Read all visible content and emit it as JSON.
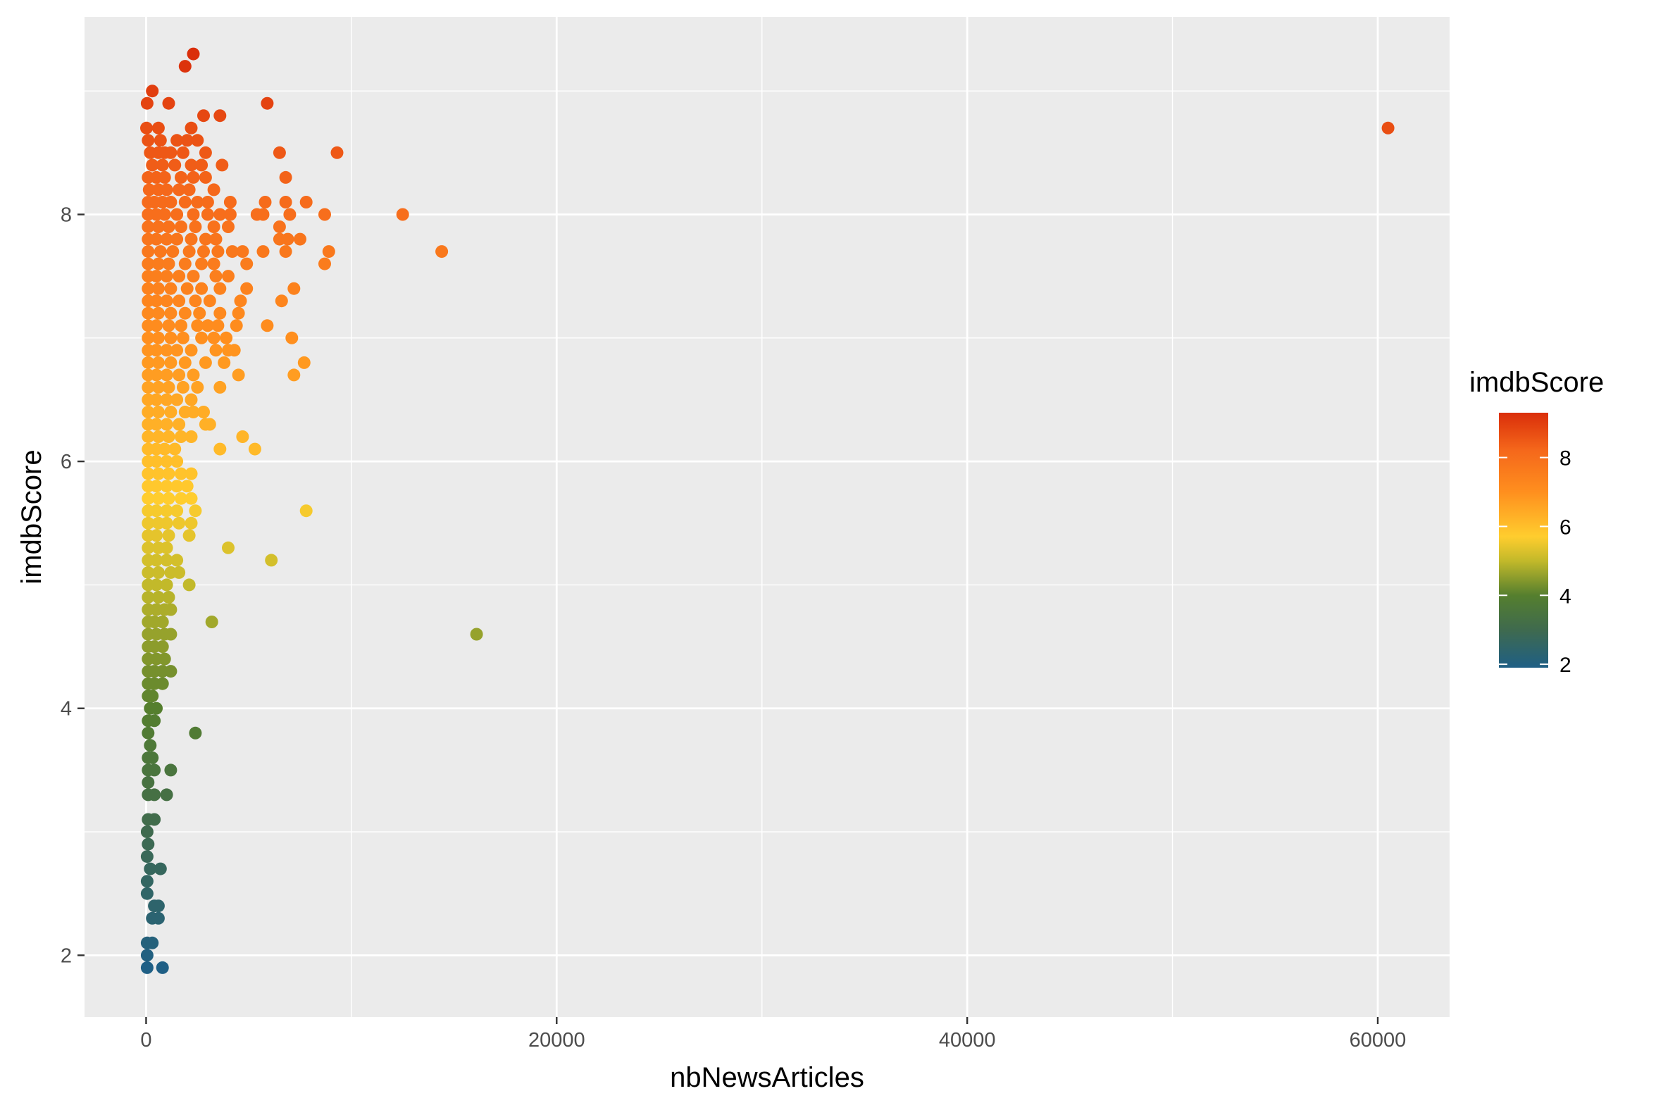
{
  "chart_data": {
    "type": "scatter",
    "title": "",
    "xlabel": "nbNewsArticles",
    "ylabel": "imdbScore",
    "xlim": [
      -3000,
      63500
    ],
    "ylim": [
      1.5,
      9.6
    ],
    "x_ticks": [
      0,
      20000,
      40000,
      60000
    ],
    "x_tick_labels": [
      "0",
      "20000",
      "40000",
      "60000"
    ],
    "y_ticks": [
      2,
      4,
      6,
      8
    ],
    "y_tick_labels": [
      "2",
      "4",
      "6",
      "8"
    ],
    "grid": true,
    "background": "#EBEBEB",
    "legend": {
      "title": "imdbScore",
      "position": "right",
      "type": "colorbar",
      "range": [
        1.9,
        9.3
      ],
      "breaks": [
        2,
        4,
        6,
        8
      ],
      "break_labels": [
        "2",
        "4",
        "6",
        "8"
      ]
    },
    "color_scale": [
      {
        "value": 1.9,
        "color": "#1F5F85"
      },
      {
        "value": 3.0,
        "color": "#3F6A4E"
      },
      {
        "value": 4.0,
        "color": "#557F2E"
      },
      {
        "value": 5.0,
        "color": "#C2B92A"
      },
      {
        "value": 5.7,
        "color": "#FFCD2E"
      },
      {
        "value": 7.0,
        "color": "#FF8F1E"
      },
      {
        "value": 8.2,
        "color": "#F5681B"
      },
      {
        "value": 9.3,
        "color": "#DA2E0A"
      }
    ],
    "points": [
      [
        2300,
        9.3
      ],
      [
        1900,
        9.2
      ],
      [
        50,
        8.9
      ],
      [
        300,
        9.0
      ],
      [
        1100,
        8.9
      ],
      [
        5900,
        8.9
      ],
      [
        3600,
        8.8
      ],
      [
        2800,
        8.8
      ],
      [
        60500,
        8.7
      ],
      [
        20,
        8.7
      ],
      [
        600,
        8.7
      ],
      [
        2200,
        8.7
      ],
      [
        200,
        8.5
      ],
      [
        600,
        8.5
      ],
      [
        900,
        8.5
      ],
      [
        1200,
        8.5
      ],
      [
        1800,
        8.5
      ],
      [
        2900,
        8.5
      ],
      [
        6500,
        8.5
      ],
      [
        9300,
        8.5
      ],
      [
        100,
        8.6
      ],
      [
        700,
        8.6
      ],
      [
        1500,
        8.6
      ],
      [
        2000,
        8.6
      ],
      [
        2500,
        8.6
      ],
      [
        300,
        8.4
      ],
      [
        800,
        8.4
      ],
      [
        1400,
        8.4
      ],
      [
        2200,
        8.4
      ],
      [
        2700,
        8.4
      ],
      [
        3700,
        8.4
      ],
      [
        100,
        8.3
      ],
      [
        500,
        8.3
      ],
      [
        900,
        8.3
      ],
      [
        1700,
        8.3
      ],
      [
        2300,
        8.3
      ],
      [
        2900,
        8.3
      ],
      [
        6800,
        8.3
      ],
      [
        150,
        8.2
      ],
      [
        600,
        8.2
      ],
      [
        1000,
        8.2
      ],
      [
        1600,
        8.2
      ],
      [
        2100,
        8.2
      ],
      [
        3300,
        8.2
      ],
      [
        100,
        8.1
      ],
      [
        400,
        8.1
      ],
      [
        800,
        8.1
      ],
      [
        1200,
        8.1
      ],
      [
        1900,
        8.1
      ],
      [
        2500,
        8.1
      ],
      [
        3000,
        8.1
      ],
      [
        4100,
        8.1
      ],
      [
        5800,
        8.1
      ],
      [
        6800,
        8.1
      ],
      [
        7800,
        8.1
      ],
      [
        100,
        8.0
      ],
      [
        500,
        8.0
      ],
      [
        900,
        8.0
      ],
      [
        1500,
        8.0
      ],
      [
        2300,
        8.0
      ],
      [
        3000,
        8.0
      ],
      [
        3600,
        8.0
      ],
      [
        4100,
        8.0
      ],
      [
        5400,
        8.0
      ],
      [
        5700,
        8.0
      ],
      [
        7000,
        8.0
      ],
      [
        8700,
        8.0
      ],
      [
        12500,
        8.0
      ],
      [
        100,
        7.9
      ],
      [
        600,
        7.9
      ],
      [
        1100,
        7.9
      ],
      [
        1700,
        7.9
      ],
      [
        2400,
        7.9
      ],
      [
        3300,
        7.9
      ],
      [
        4000,
        7.9
      ],
      [
        6500,
        7.9
      ],
      [
        100,
        7.8
      ],
      [
        500,
        7.8
      ],
      [
        1000,
        7.8
      ],
      [
        1500,
        7.8
      ],
      [
        2200,
        7.8
      ],
      [
        2900,
        7.8
      ],
      [
        3400,
        7.8
      ],
      [
        6500,
        7.8
      ],
      [
        6900,
        7.8
      ],
      [
        7500,
        7.8
      ],
      [
        100,
        7.7
      ],
      [
        700,
        7.7
      ],
      [
        1300,
        7.7
      ],
      [
        2100,
        7.7
      ],
      [
        2800,
        7.7
      ],
      [
        3500,
        7.7
      ],
      [
        4200,
        7.7
      ],
      [
        4700,
        7.7
      ],
      [
        5700,
        7.7
      ],
      [
        6800,
        7.7
      ],
      [
        8900,
        7.7
      ],
      [
        14400,
        7.7
      ],
      [
        100,
        7.6
      ],
      [
        600,
        7.6
      ],
      [
        1100,
        7.6
      ],
      [
        1900,
        7.6
      ],
      [
        2700,
        7.6
      ],
      [
        3300,
        7.6
      ],
      [
        4900,
        7.6
      ],
      [
        8700,
        7.6
      ],
      [
        100,
        7.5
      ],
      [
        500,
        7.5
      ],
      [
        1000,
        7.5
      ],
      [
        1600,
        7.5
      ],
      [
        2300,
        7.5
      ],
      [
        3400,
        7.5
      ],
      [
        4000,
        7.5
      ],
      [
        100,
        7.4
      ],
      [
        600,
        7.4
      ],
      [
        1200,
        7.4
      ],
      [
        2000,
        7.4
      ],
      [
        2700,
        7.4
      ],
      [
        3600,
        7.4
      ],
      [
        4900,
        7.4
      ],
      [
        7200,
        7.4
      ],
      [
        100,
        7.3
      ],
      [
        500,
        7.3
      ],
      [
        1000,
        7.3
      ],
      [
        1600,
        7.3
      ],
      [
        2400,
        7.3
      ],
      [
        3100,
        7.3
      ],
      [
        4600,
        7.3
      ],
      [
        6600,
        7.3
      ],
      [
        100,
        7.2
      ],
      [
        600,
        7.2
      ],
      [
        1200,
        7.2
      ],
      [
        1900,
        7.2
      ],
      [
        2600,
        7.2
      ],
      [
        3600,
        7.2
      ],
      [
        4500,
        7.2
      ],
      [
        100,
        7.1
      ],
      [
        500,
        7.1
      ],
      [
        1100,
        7.1
      ],
      [
        1700,
        7.1
      ],
      [
        2500,
        7.1
      ],
      [
        3000,
        7.1
      ],
      [
        3500,
        7.1
      ],
      [
        4400,
        7.1
      ],
      [
        5900,
        7.1
      ],
      [
        100,
        7.0
      ],
      [
        600,
        7.0
      ],
      [
        1200,
        7.0
      ],
      [
        1800,
        7.0
      ],
      [
        2700,
        7.0
      ],
      [
        3300,
        7.0
      ],
      [
        3900,
        7.0
      ],
      [
        7100,
        7.0
      ],
      [
        100,
        6.9
      ],
      [
        500,
        6.9
      ],
      [
        1000,
        6.9
      ],
      [
        1500,
        6.9
      ],
      [
        2200,
        6.9
      ],
      [
        3400,
        6.9
      ],
      [
        4000,
        6.9
      ],
      [
        4300,
        6.9
      ],
      [
        100,
        6.8
      ],
      [
        600,
        6.8
      ],
      [
        1200,
        6.8
      ],
      [
        1900,
        6.8
      ],
      [
        2900,
        6.8
      ],
      [
        3800,
        6.8
      ],
      [
        7700,
        6.8
      ],
      [
        100,
        6.7
      ],
      [
        500,
        6.7
      ],
      [
        1000,
        6.7
      ],
      [
        1600,
        6.7
      ],
      [
        2300,
        6.7
      ],
      [
        4500,
        6.7
      ],
      [
        7200,
        6.7
      ],
      [
        100,
        6.6
      ],
      [
        600,
        6.6
      ],
      [
        1100,
        6.6
      ],
      [
        1800,
        6.6
      ],
      [
        2500,
        6.6
      ],
      [
        3600,
        6.6
      ],
      [
        100,
        6.5
      ],
      [
        500,
        6.5
      ],
      [
        1000,
        6.5
      ],
      [
        1500,
        6.5
      ],
      [
        2200,
        6.5
      ],
      [
        100,
        6.4
      ],
      [
        600,
        6.4
      ],
      [
        1200,
        6.4
      ],
      [
        1900,
        6.4
      ],
      [
        2300,
        6.4
      ],
      [
        2800,
        6.4
      ],
      [
        100,
        6.3
      ],
      [
        500,
        6.3
      ],
      [
        1000,
        6.3
      ],
      [
        1600,
        6.3
      ],
      [
        2900,
        6.3
      ],
      [
        3100,
        6.3
      ],
      [
        100,
        6.2
      ],
      [
        600,
        6.2
      ],
      [
        1100,
        6.2
      ],
      [
        1700,
        6.2
      ],
      [
        2200,
        6.2
      ],
      [
        4700,
        6.2
      ],
      [
        100,
        6.1
      ],
      [
        500,
        6.1
      ],
      [
        900,
        6.1
      ],
      [
        1400,
        6.1
      ],
      [
        3600,
        6.1
      ],
      [
        5300,
        6.1
      ],
      [
        100,
        6.0
      ],
      [
        500,
        6.0
      ],
      [
        1000,
        6.0
      ],
      [
        1500,
        6.0
      ],
      [
        100,
        5.9
      ],
      [
        600,
        5.9
      ],
      [
        1100,
        5.9
      ],
      [
        1700,
        5.9
      ],
      [
        2200,
        5.9
      ],
      [
        100,
        5.8
      ],
      [
        500,
        5.8
      ],
      [
        1000,
        5.8
      ],
      [
        1500,
        5.8
      ],
      [
        2000,
        5.8
      ],
      [
        100,
        5.7
      ],
      [
        600,
        5.7
      ],
      [
        1100,
        5.7
      ],
      [
        1700,
        5.7
      ],
      [
        2200,
        5.7
      ],
      [
        100,
        5.6
      ],
      [
        500,
        5.6
      ],
      [
        1000,
        5.6
      ],
      [
        1500,
        5.6
      ],
      [
        2400,
        5.6
      ],
      [
        7800,
        5.6
      ],
      [
        100,
        5.5
      ],
      [
        600,
        5.5
      ],
      [
        1000,
        5.5
      ],
      [
        1600,
        5.5
      ],
      [
        2200,
        5.5
      ],
      [
        100,
        5.4
      ],
      [
        500,
        5.4
      ],
      [
        1100,
        5.4
      ],
      [
        2100,
        5.4
      ],
      [
        100,
        5.3
      ],
      [
        600,
        5.3
      ],
      [
        1000,
        5.3
      ],
      [
        4000,
        5.3
      ],
      [
        100,
        5.2
      ],
      [
        500,
        5.2
      ],
      [
        1000,
        5.2
      ],
      [
        1500,
        5.2
      ],
      [
        6100,
        5.2
      ],
      [
        100,
        5.1
      ],
      [
        600,
        5.1
      ],
      [
        1200,
        5.1
      ],
      [
        1600,
        5.1
      ],
      [
        100,
        5.0
      ],
      [
        500,
        5.0
      ],
      [
        1000,
        5.0
      ],
      [
        2100,
        5.0
      ],
      [
        100,
        4.9
      ],
      [
        600,
        4.9
      ],
      [
        1100,
        4.9
      ],
      [
        100,
        4.8
      ],
      [
        500,
        4.8
      ],
      [
        900,
        4.8
      ],
      [
        1200,
        4.8
      ],
      [
        100,
        4.7
      ],
      [
        400,
        4.7
      ],
      [
        800,
        4.7
      ],
      [
        3200,
        4.7
      ],
      [
        100,
        4.6
      ],
      [
        500,
        4.6
      ],
      [
        900,
        4.6
      ],
      [
        1200,
        4.6
      ],
      [
        16100,
        4.6
      ],
      [
        100,
        4.5
      ],
      [
        400,
        4.5
      ],
      [
        800,
        4.5
      ],
      [
        100,
        4.4
      ],
      [
        500,
        4.4
      ],
      [
        900,
        4.4
      ],
      [
        100,
        4.3
      ],
      [
        400,
        4.3
      ],
      [
        800,
        4.3
      ],
      [
        1200,
        4.3
      ],
      [
        100,
        4.2
      ],
      [
        400,
        4.2
      ],
      [
        800,
        4.2
      ],
      [
        100,
        4.1
      ],
      [
        300,
        4.1
      ],
      [
        200,
        4.0
      ],
      [
        500,
        4.0
      ],
      [
        100,
        3.9
      ],
      [
        400,
        3.9
      ],
      [
        100,
        3.8
      ],
      [
        2400,
        3.8
      ],
      [
        200,
        3.7
      ],
      [
        100,
        3.6
      ],
      [
        300,
        3.6
      ],
      [
        100,
        3.5
      ],
      [
        400,
        3.5
      ],
      [
        1200,
        3.5
      ],
      [
        100,
        3.4
      ],
      [
        100,
        3.3
      ],
      [
        400,
        3.3
      ],
      [
        1000,
        3.3
      ],
      [
        100,
        3.1
      ],
      [
        400,
        3.1
      ],
      [
        50,
        3.0
      ],
      [
        100,
        2.9
      ],
      [
        50,
        2.8
      ],
      [
        200,
        2.7
      ],
      [
        700,
        2.7
      ],
      [
        50,
        2.6
      ],
      [
        50,
        2.5
      ],
      [
        400,
        2.4
      ],
      [
        600,
        2.4
      ],
      [
        300,
        2.3
      ],
      [
        600,
        2.3
      ],
      [
        50,
        2.1
      ],
      [
        300,
        2.1
      ],
      [
        50,
        2.0
      ],
      [
        50,
        1.9
      ],
      [
        800,
        1.9
      ]
    ]
  }
}
